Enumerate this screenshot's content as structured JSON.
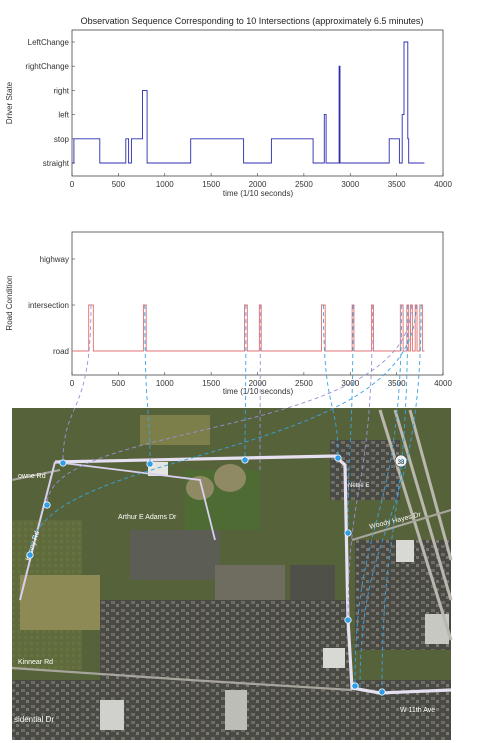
{
  "chart_data": [
    {
      "type": "line",
      "title": "Observation Sequence Corresponding to 10 Intersections (approximately 6.5 minutes)",
      "xlabel": "time (1/10 seconds)",
      "ylabel": "Driver State",
      "xlim": [
        0,
        4000
      ],
      "xticks": [
        "0",
        "500",
        "1000",
        "1500",
        "2000",
        "2500",
        "3000",
        "3500",
        "4000"
      ],
      "categories": [
        "straight",
        "stop",
        "left",
        "right",
        "rightChange",
        "LeftChange"
      ],
      "line_color": "#2b2bb0",
      "series": [
        {
          "x": [
            0,
            20,
            20,
            300,
            300,
            580,
            580,
            610,
            610,
            640,
            640,
            760,
            760,
            810,
            810,
            1280,
            1280,
            1850,
            1850,
            2150,
            2150,
            2600,
            2600,
            2720,
            2720,
            2740,
            2740,
            2880,
            2880,
            2890,
            2890,
            3420,
            3420,
            3530,
            3530,
            3560,
            3560,
            3580,
            3580,
            3620,
            3620,
            3630,
            3630,
            3800
          ],
          "y": [
            "straight",
            "straight",
            "stop",
            "stop",
            "straight",
            "straight",
            "stop",
            "stop",
            "straight",
            "straight",
            "stop",
            "stop",
            "right",
            "right",
            "straight",
            "straight",
            "stop",
            "stop",
            "straight",
            "straight",
            "stop",
            "stop",
            "straight",
            "straight",
            "left",
            "left",
            "straight",
            "straight",
            "rightChange",
            "rightChange",
            "straight",
            "straight",
            "stop",
            "stop",
            "straight",
            "straight",
            "left",
            "left",
            "LeftChange",
            "LeftChange",
            "stop",
            "stop",
            "straight",
            "straight"
          ]
        }
      ]
    },
    {
      "type": "line",
      "title": "",
      "xlabel": "time (1/10 seconds)",
      "ylabel": "Road Condition",
      "xlim": [
        0,
        4000
      ],
      "xticks": [
        "0",
        "500",
        "1000",
        "1500",
        "2000",
        "2500",
        "3000",
        "3500",
        "4000"
      ],
      "categories": [
        "road",
        "intersection",
        "highway"
      ],
      "line_color": "#e07070",
      "series": [
        {
          "intervals": [
            [
              180,
              230
            ],
            [
              770,
              800
            ],
            [
              1860,
              1890
            ],
            [
              2020,
              2040
            ],
            [
              2690,
              2730
            ],
            [
              3020,
              3040
            ],
            [
              3230,
              3250
            ],
            [
              3540,
              3570
            ],
            [
              3610,
              3630
            ],
            [
              3650,
              3670
            ],
            [
              3700,
              3720
            ],
            [
              3750,
              3780
            ]
          ],
          "x_end": 3800
        }
      ]
    }
  ],
  "map": {
    "highway_shield": "33",
    "labels": [
      "owne Rd",
      "Arthur E Adams Dr",
      "Kenny Rd",
      "Kinnear Rd",
      "Woody Hayes Dr",
      "Nettie E",
      "sidential Dr",
      "W 11th Ave"
    ],
    "road_color": "#e6e0f2",
    "marker_color": "#2f9ee8"
  },
  "connectors": {
    "color": "#3aa3e0",
    "alt_color": "#9a8fd8"
  }
}
